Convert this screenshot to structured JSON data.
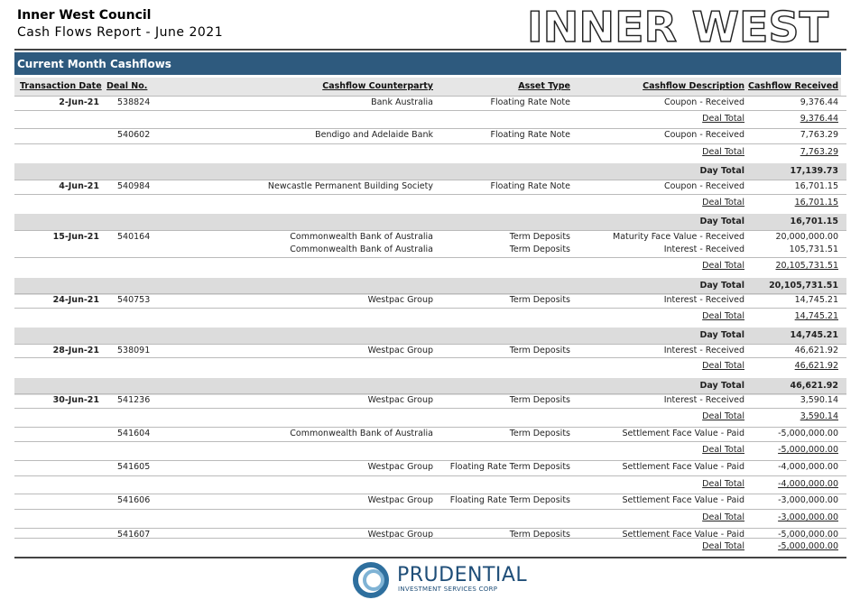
{
  "header": {
    "title": "Inner West Council",
    "subtitle": "Cash Flows Report - June 2021",
    "logo": "INNER WEST"
  },
  "section": "Current Month Cashflows",
  "table": {
    "columns": [
      "Transaction Date",
      "Deal No.",
      "Cashflow Counterparty",
      "Asset Type",
      "Cashflow Description",
      "Cashflow Received"
    ],
    "rows": [
      {
        "date": "2-Jun-21",
        "deal": "538824",
        "counterparty": "Bank Australia",
        "asset_type": "Floating Rate Note",
        "description": "Coupon - Received",
        "amount": "9,376.44"
      },
      {
        "description": "Deal Total",
        "amount": "9,376.44"
      },
      {
        "deal": "540602",
        "counterparty": "Bendigo and Adelaide Bank",
        "asset_type": "Floating Rate Note",
        "description": "Coupon - Received",
        "amount": "7,763.29"
      },
      {
        "description": "Deal Total",
        "amount": "7,763.29"
      },
      {
        "description": "Day Total",
        "amount": "17,139.73"
      },
      {
        "date": "4-Jun-21",
        "deal": "540984",
        "counterparty": "Newcastle Permanent Building Society",
        "asset_type": "Floating Rate Note",
        "description": "Coupon - Received",
        "amount": "16,701.15"
      },
      {
        "description": "Deal Total",
        "amount": "16,701.15"
      },
      {
        "description": "Day Total",
        "amount": "16,701.15"
      },
      {
        "date": "15-Jun-21",
        "deal": "540164",
        "counterparty": "Commonwealth Bank of Australia",
        "asset_type": "Term Deposits",
        "description": "Maturity Face Value - Received",
        "amount": "20,000,000.00"
      },
      {
        "counterparty": "Commonwealth Bank of Australia",
        "asset_type": "Term Deposits",
        "description": "Interest - Received",
        "amount": "105,731.51"
      },
      {
        "description": "Deal Total",
        "amount": "20,105,731.51"
      },
      {
        "description": "Day Total",
        "amount": "20,105,731.51"
      },
      {
        "date": "24-Jun-21",
        "deal": "540753",
        "counterparty": "Westpac Group",
        "asset_type": "Term Deposits",
        "description": "Interest - Received",
        "amount": "14,745.21"
      },
      {
        "description": "Deal Total",
        "amount": "14,745.21"
      },
      {
        "description": "Day Total",
        "amount": "14,745.21"
      },
      {
        "date": "28-Jun-21",
        "deal": "538091",
        "counterparty": "Westpac Group",
        "asset_type": "Term Deposits",
        "description": "Interest - Received",
        "amount": "46,621.92"
      },
      {
        "description": "Deal Total",
        "amount": "46,621.92"
      },
      {
        "description": "Day Total",
        "amount": "46,621.92"
      },
      {
        "date": "30-Jun-21",
        "deal": "541236",
        "counterparty": "Westpac Group",
        "asset_type": "Term Deposits",
        "description": "Interest - Received",
        "amount": "3,590.14"
      },
      {
        "description": "Deal Total",
        "amount": "3,590.14"
      },
      {
        "deal": "541604",
        "counterparty": "Commonwealth Bank of Australia",
        "asset_type": "Term Deposits",
        "description": "Settlement Face Value - Paid",
        "amount": "-5,000,000.00"
      },
      {
        "description": "Deal Total",
        "amount": "-5,000,000.00"
      },
      {
        "deal": "541605",
        "counterparty": "Westpac Group",
        "asset_type": "Floating Rate Term Deposits",
        "description": "Settlement Face Value - Paid",
        "amount": "-4,000,000.00"
      },
      {
        "description": "Deal Total",
        "amount": "-4,000,000.00"
      },
      {
        "deal": "541606",
        "counterparty": "Westpac Group",
        "asset_type": "Floating Rate Term Deposits",
        "description": "Settlement Face Value - Paid",
        "amount": "-3,000,000.00"
      },
      {
        "description": "Deal Total",
        "amount": "-3,000,000.00"
      },
      {
        "deal": "541607",
        "counterparty": "Westpac Group",
        "asset_type": "Term Deposits",
        "description": "Settlement Face Value - Paid",
        "amount": "-5,000,000.00"
      },
      {
        "description": "Deal Total",
        "amount": "-5,000,000.00"
      }
    ]
  },
  "footer": {
    "brand": "PRUDENTIAL",
    "tagline": "INVESTMENT SERVICES CORP"
  }
}
